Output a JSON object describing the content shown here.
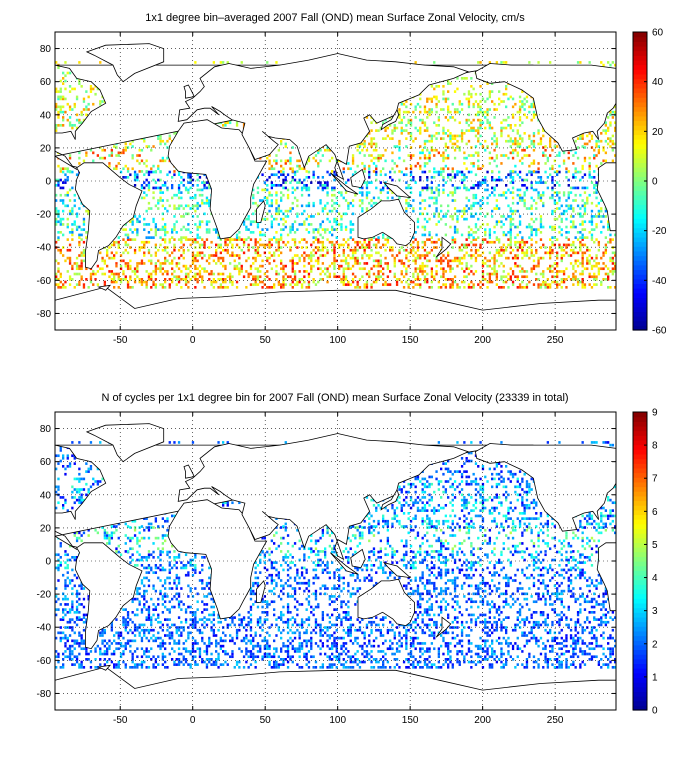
{
  "colors": {
    "land": "#ffffff",
    "coast": "#000000",
    "grid": "#000000",
    "jet": [
      "#00008f",
      "#0000ff",
      "#0080ff",
      "#00ffff",
      "#80ff80",
      "#ffff00",
      "#ff8000",
      "#ff0000",
      "#800000"
    ]
  },
  "chart_data": [
    {
      "type": "heatmap",
      "title": "1x1 degree bin–averaged 2007 Fall (OND) mean Surface Zonal Velocity, cm/s",
      "xlim": [
        -95,
        292
      ],
      "ylim": [
        -90,
        90
      ],
      "x_ticks": [
        -50,
        0,
        50,
        100,
        150,
        200,
        250
      ],
      "y_ticks": [
        80,
        60,
        40,
        20,
        0,
        -20,
        -40,
        -60,
        -80
      ],
      "x_tick_labels": [
        "-50",
        "0",
        "50",
        "100",
        "150",
        "200",
        "250"
      ],
      "y_tick_labels": [
        "80",
        "60",
        "40",
        "20",
        "0",
        "-20",
        "-40",
        "-60",
        "-80"
      ],
      "grid": true,
      "colorbar": {
        "min": -60,
        "max": 60,
        "ticks": [
          60,
          40,
          20,
          0,
          -20,
          -40,
          -60
        ],
        "tick_labels": [
          "60",
          "40",
          "20",
          "0",
          "-20",
          "-40",
          "-60"
        ],
        "colormap": "jet"
      },
      "bin_size_deg": 1,
      "bands": [
        {
          "lat": [
            -65,
            -35
          ],
          "lon": [
            -95,
            292
          ],
          "value_range": [
            0,
            45
          ],
          "density": 0.35
        },
        {
          "lat": [
            -35,
            -5
          ],
          "lon": [
            -95,
            292
          ],
          "value_range": [
            -30,
            15
          ],
          "density": 0.28
        },
        {
          "lat": [
            -5,
            5
          ],
          "lon": [
            -95,
            292
          ],
          "value_range": [
            -55,
            0
          ],
          "density": 0.3
        },
        {
          "lat": [
            5,
            20
          ],
          "lon": [
            -95,
            292
          ],
          "value_range": [
            -15,
            40
          ],
          "density": 0.22
        },
        {
          "lat": [
            20,
            50
          ],
          "lon": [
            -95,
            292
          ],
          "value_range": [
            -10,
            30
          ],
          "density": 0.3
        },
        {
          "lat": [
            50,
            72
          ],
          "lon": [
            -95,
            292
          ],
          "value_range": [
            -5,
            25
          ],
          "density": 0.2
        }
      ]
    },
    {
      "type": "heatmap",
      "title": "N of cycles per 1x1 degree bin for 2007 Fall (OND) mean Surface Zonal Velocity (23339 in total)",
      "xlim": [
        -95,
        292
      ],
      "ylim": [
        -90,
        90
      ],
      "x_ticks": [
        -50,
        0,
        50,
        100,
        150,
        200,
        250
      ],
      "y_ticks": [
        80,
        60,
        40,
        20,
        0,
        -20,
        -40,
        -60,
        -80
      ],
      "x_tick_labels": [
        "-50",
        "0",
        "50",
        "100",
        "150",
        "200",
        "250"
      ],
      "y_tick_labels": [
        "80",
        "60",
        "40",
        "20",
        "0",
        "-20",
        "-40",
        "-60",
        "-80"
      ],
      "grid": true,
      "total": 23339,
      "colorbar": {
        "min": 0,
        "max": 9,
        "ticks": [
          9,
          8,
          7,
          6,
          5,
          4,
          3,
          2,
          1,
          0
        ],
        "tick_labels": [
          "9",
          "8",
          "7",
          "6",
          "5",
          "4",
          "3",
          "2",
          "1",
          "0"
        ],
        "colormap": "jet"
      },
      "bin_size_deg": 1,
      "bands": [
        {
          "lat": [
            -65,
            -35
          ],
          "lon": [
            -95,
            292
          ],
          "value_range": [
            1,
            3
          ],
          "density": 0.35
        },
        {
          "lat": [
            -35,
            -5
          ],
          "lon": [
            -95,
            292
          ],
          "value_range": [
            1,
            3
          ],
          "density": 0.28
        },
        {
          "lat": [
            -5,
            5
          ],
          "lon": [
            -95,
            292
          ],
          "value_range": [
            1,
            4
          ],
          "density": 0.3
        },
        {
          "lat": [
            5,
            20
          ],
          "lon": [
            -95,
            292
          ],
          "value_range": [
            1,
            5
          ],
          "density": 0.22
        },
        {
          "lat": [
            20,
            50
          ],
          "lon": [
            -95,
            292
          ],
          "value_range": [
            1,
            4
          ],
          "density": 0.3
        },
        {
          "lat": [
            50,
            72
          ],
          "lon": [
            -95,
            292
          ],
          "value_range": [
            1,
            3
          ],
          "density": 0.2
        }
      ]
    }
  ]
}
